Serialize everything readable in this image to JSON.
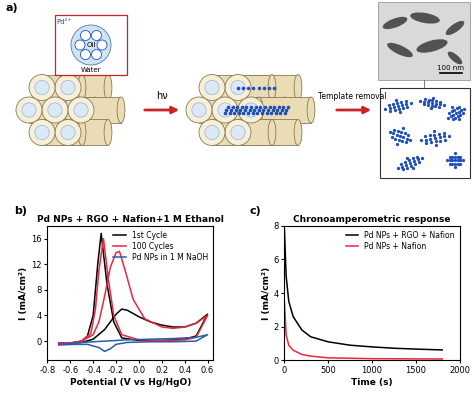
{
  "diagram": {
    "panel_label": "a)",
    "inset_labels": {
      "ion": "Pd²⁺",
      "core": "Oil",
      "shell": "Water"
    },
    "arrow_1": "hν",
    "arrow_2": "Template removal",
    "scale_bar": "100 nm"
  },
  "chart_data": [
    {
      "type": "line",
      "panel_label": "b)",
      "title": "Pd NPs + RGO + Nafion+1 M Ethanol",
      "x_label": "Potential (V vs Hg/HgO)",
      "y_label": "I (mA/cm²)",
      "xlim": [
        -0.8,
        0.65
      ],
      "xticks": [
        -0.8,
        -0.6,
        -0.4,
        -0.2,
        0.0,
        0.2,
        0.4,
        0.6
      ],
      "ylim": [
        -3,
        18
      ],
      "yticks": [
        0,
        4,
        8,
        12,
        16
      ],
      "legend": "upper right",
      "series": [
        {
          "name": "1st Cycle",
          "color": "#000000",
          "x": [
            -0.7,
            -0.6,
            -0.5,
            -0.4,
            -0.3,
            -0.2,
            -0.15,
            -0.1,
            0.0,
            0.1,
            0.2,
            0.3,
            0.4,
            0.5,
            0.6,
            0.5,
            0.4,
            0.2,
            0.0,
            -0.15,
            -0.22,
            -0.28,
            -0.33,
            -0.36,
            -0.4,
            -0.45,
            -0.5,
            -0.6,
            -0.7
          ],
          "values": [
            -0.3,
            -0.3,
            -0.2,
            0.3,
            1.8,
            4.2,
            5.0,
            4.8,
            3.8,
            3.0,
            2.5,
            2.2,
            2.2,
            2.8,
            4.2,
            0.8,
            0.3,
            0.1,
            0.1,
            0.5,
            3.0,
            9.0,
            16.8,
            12.0,
            4.0,
            0.8,
            0.0,
            -0.3,
            -0.3
          ]
        },
        {
          "name": "100 Cycles",
          "color": "#e8283c",
          "x": [
            -0.7,
            -0.6,
            -0.5,
            -0.4,
            -0.35,
            -0.3,
            -0.25,
            -0.2,
            -0.17,
            -0.12,
            -0.05,
            0.05,
            0.2,
            0.3,
            0.4,
            0.5,
            0.6,
            0.5,
            0.4,
            0.2,
            0.0,
            -0.15,
            -0.22,
            -0.27,
            -0.31,
            -0.35,
            -0.38,
            -0.42,
            -0.5,
            -0.6,
            -0.7
          ],
          "values": [
            -0.3,
            -0.3,
            0.0,
            1.0,
            3.0,
            7.0,
            11.5,
            13.8,
            14.0,
            11.0,
            6.5,
            3.5,
            2.2,
            2.0,
            2.2,
            2.8,
            4.0,
            0.6,
            0.2,
            0.1,
            0.2,
            1.0,
            4.0,
            10.0,
            16.0,
            11.0,
            5.0,
            1.2,
            0.0,
            -0.3,
            -0.3
          ]
        },
        {
          "name": "Pd NPs in 1 M NaOH",
          "color": "#2a5caa",
          "x": [
            -0.7,
            -0.5,
            -0.3,
            -0.1,
            0.1,
            0.3,
            0.5,
            0.6,
            0.5,
            0.3,
            0.1,
            -0.1,
            -0.2,
            -0.25,
            -0.3,
            -0.35,
            -0.45,
            -0.55,
            -0.7
          ],
          "values": [
            -0.5,
            -0.2,
            0.0,
            0.2,
            0.3,
            0.4,
            0.6,
            1.0,
            0.0,
            -0.1,
            -0.1,
            -0.2,
            -0.5,
            -1.2,
            -1.6,
            -1.0,
            -0.5,
            -0.5,
            -0.6
          ]
        }
      ]
    },
    {
      "type": "line",
      "panel_label": "c)",
      "title": "Chronoamperometric response",
      "x_label": "Time (s)",
      "y_label": "I (mA/cm²)",
      "xlim": [
        0,
        2000
      ],
      "xticks": [
        0,
        500,
        1000,
        1500,
        2000
      ],
      "ylim": [
        0,
        8
      ],
      "yticks": [
        0,
        2,
        4,
        6,
        8
      ],
      "legend": "upper right",
      "series": [
        {
          "name": "Pd NPs + RGO + Nafion",
          "color": "#000000",
          "x": [
            0,
            20,
            50,
            100,
            200,
            300,
            500,
            750,
            1000,
            1250,
            1500,
            1800
          ],
          "values": [
            7.8,
            5.0,
            3.5,
            2.6,
            1.8,
            1.4,
            1.1,
            0.9,
            0.8,
            0.72,
            0.67,
            0.62
          ]
        },
        {
          "name": "Pd NPs + Nafion",
          "color": "#e8283c",
          "x": [
            0,
            20,
            50,
            100,
            200,
            300,
            500,
            1000,
            1800
          ],
          "values": [
            3.5,
            1.5,
            0.9,
            0.6,
            0.35,
            0.25,
            0.15,
            0.1,
            0.08
          ]
        }
      ]
    }
  ]
}
